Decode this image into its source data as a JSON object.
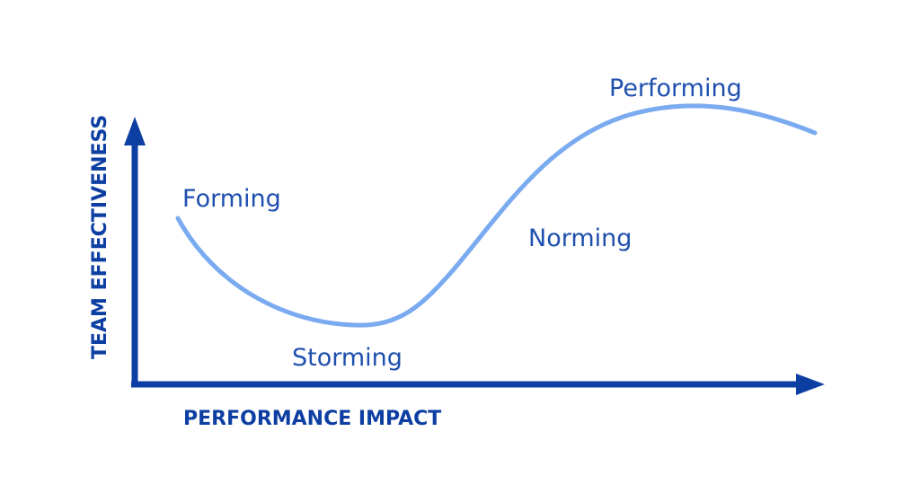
{
  "axes": {
    "y_label": "TEAM EFFECTIVENESS",
    "x_label": "PERFORMANCE IMPACT"
  },
  "stages": {
    "forming": "Forming",
    "storming": "Storming",
    "norming": "Norming",
    "performing": "Performing"
  },
  "colors": {
    "axis": "#0d3fa3",
    "curve": "#7aaaf0",
    "label_text": "#1f4fae"
  }
}
